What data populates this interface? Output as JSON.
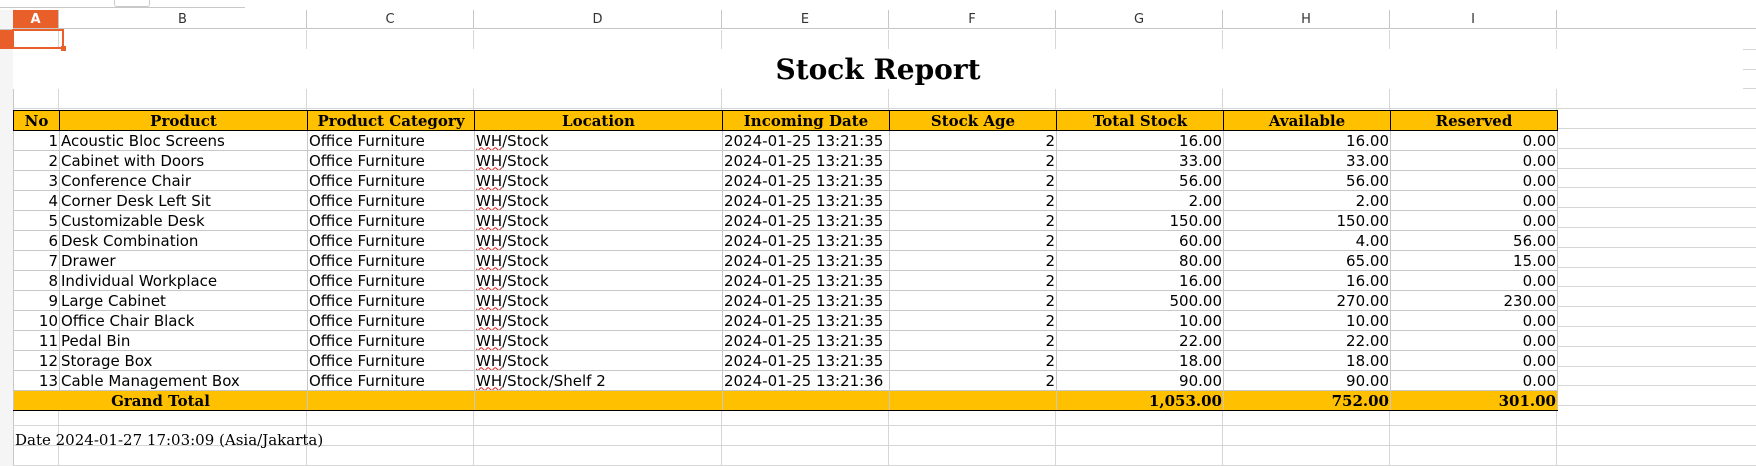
{
  "sheet": {
    "columns": [
      "A",
      "B",
      "C",
      "D",
      "E",
      "F",
      "G",
      "H",
      "I"
    ],
    "selected_cell": "A1",
    "accent": "#e95f2a",
    "header_fill": "#ffc000"
  },
  "report": {
    "title": "Stock Report",
    "headers": {
      "no": "No",
      "product": "Product",
      "category": "Product Category",
      "location": "Location",
      "incoming": "Incoming Date",
      "age": "Stock Age",
      "total": "Total Stock",
      "available": "Available",
      "reserved": "Reserved"
    },
    "rows": [
      {
        "no": "1",
        "product": "Acoustic Bloc Screens",
        "category": "Office Furniture",
        "loc_wh": "WH",
        "loc_rest": "/Stock",
        "incoming": "2024-01-25 13:21:35",
        "age": "2",
        "total": "16.00",
        "available": "16.00",
        "reserved": "0.00"
      },
      {
        "no": "2",
        "product": "Cabinet with Doors",
        "category": "Office Furniture",
        "loc_wh": "WH",
        "loc_rest": "/Stock",
        "incoming": "2024-01-25 13:21:35",
        "age": "2",
        "total": "33.00",
        "available": "33.00",
        "reserved": "0.00"
      },
      {
        "no": "3",
        "product": "Conference Chair",
        "category": "Office Furniture",
        "loc_wh": "WH",
        "loc_rest": "/Stock",
        "incoming": "2024-01-25 13:21:35",
        "age": "2",
        "total": "56.00",
        "available": "56.00",
        "reserved": "0.00"
      },
      {
        "no": "4",
        "product": "Corner Desk Left Sit",
        "category": "Office Furniture",
        "loc_wh": "WH",
        "loc_rest": "/Stock",
        "incoming": "2024-01-25 13:21:35",
        "age": "2",
        "total": "2.00",
        "available": "2.00",
        "reserved": "0.00"
      },
      {
        "no": "5",
        "product": "Customizable Desk",
        "category": "Office Furniture",
        "loc_wh": "WH",
        "loc_rest": "/Stock",
        "incoming": "2024-01-25 13:21:35",
        "age": "2",
        "total": "150.00",
        "available": "150.00",
        "reserved": "0.00"
      },
      {
        "no": "6",
        "product": "Desk Combination",
        "category": "Office Furniture",
        "loc_wh": "WH",
        "loc_rest": "/Stock",
        "incoming": "2024-01-25 13:21:35",
        "age": "2",
        "total": "60.00",
        "available": "4.00",
        "reserved": "56.00"
      },
      {
        "no": "7",
        "product": "Drawer",
        "category": "Office Furniture",
        "loc_wh": "WH",
        "loc_rest": "/Stock",
        "incoming": "2024-01-25 13:21:35",
        "age": "2",
        "total": "80.00",
        "available": "65.00",
        "reserved": "15.00"
      },
      {
        "no": "8",
        "product": "Individual Workplace",
        "category": "Office Furniture",
        "loc_wh": "WH",
        "loc_rest": "/Stock",
        "incoming": "2024-01-25 13:21:35",
        "age": "2",
        "total": "16.00",
        "available": "16.00",
        "reserved": "0.00"
      },
      {
        "no": "9",
        "product": "Large Cabinet",
        "category": "Office Furniture",
        "loc_wh": "WH",
        "loc_rest": "/Stock",
        "incoming": "2024-01-25 13:21:35",
        "age": "2",
        "total": "500.00",
        "available": "270.00",
        "reserved": "230.00"
      },
      {
        "no": "10",
        "product": "Office Chair Black",
        "category": "Office Furniture",
        "loc_wh": "WH",
        "loc_rest": "/Stock",
        "incoming": "2024-01-25 13:21:35",
        "age": "2",
        "total": "10.00",
        "available": "10.00",
        "reserved": "0.00"
      },
      {
        "no": "11",
        "product": "Pedal Bin",
        "category": "Office Furniture",
        "loc_wh": "WH",
        "loc_rest": "/Stock",
        "incoming": "2024-01-25 13:21:35",
        "age": "2",
        "total": "22.00",
        "available": "22.00",
        "reserved": "0.00"
      },
      {
        "no": "12",
        "product": "Storage Box",
        "category": "Office Furniture",
        "loc_wh": "WH",
        "loc_rest": "/Stock",
        "incoming": "2024-01-25 13:21:35",
        "age": "2",
        "total": "18.00",
        "available": "18.00",
        "reserved": "0.00"
      },
      {
        "no": "13",
        "product": "Cable Management Box",
        "category": "Office Furniture",
        "loc_wh": "WH",
        "loc_rest": "/Stock/Shelf 2",
        "incoming": "2024-01-25 13:21:36",
        "age": "2",
        "total": "90.00",
        "available": "90.00",
        "reserved": "0.00"
      }
    ],
    "grand_total": {
      "label": "Grand Total",
      "total": "1,053.00",
      "available": "752.00",
      "reserved": "301.00"
    },
    "footer_date": "Date 2024-01-27 17:03:09 (Asia/Jakarta)"
  }
}
